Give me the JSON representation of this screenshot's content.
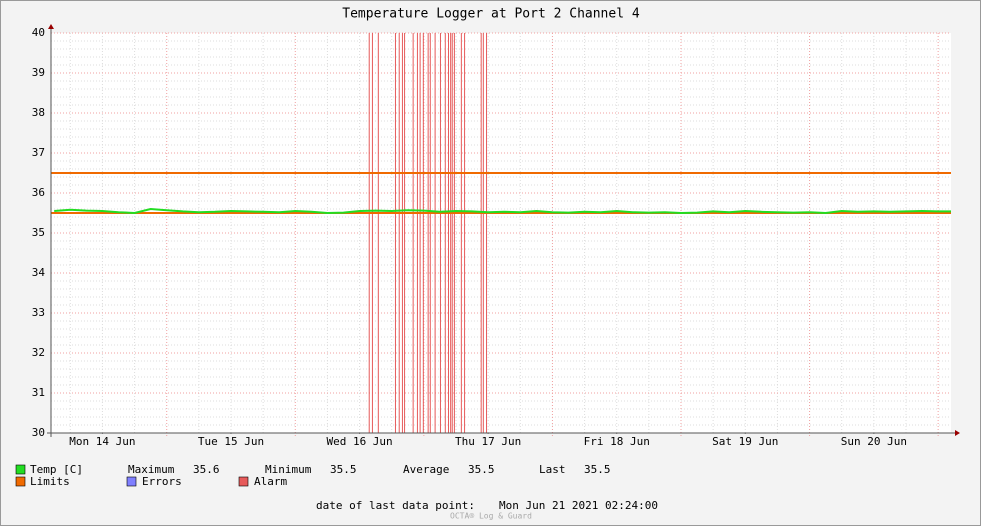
{
  "chart_data": {
    "type": "line",
    "title": "Temperature Logger at Port 2 Channel 4",
    "x": [
      3,
      6,
      9,
      12,
      15,
      18,
      21,
      24,
      27,
      30,
      33,
      36,
      39,
      42,
      45,
      48,
      51,
      54,
      57,
      60,
      63,
      66,
      69,
      72,
      75,
      78,
      81,
      84,
      87,
      90,
      93,
      96,
      99,
      102,
      105,
      108,
      111,
      114,
      117,
      120,
      123,
      126,
      129,
      132,
      135,
      138,
      141,
      144,
      147,
      150,
      153,
      156,
      159,
      162,
      165,
      168,
      170.4
    ],
    "series": [
      {
        "name": "Temp [C]",
        "color": "#22dd22",
        "values": [
          35.55,
          35.58,
          35.56,
          35.55,
          35.52,
          35.5,
          35.6,
          35.57,
          35.54,
          35.52,
          35.53,
          35.55,
          35.54,
          35.53,
          35.52,
          35.55,
          35.53,
          35.5,
          35.51,
          35.55,
          35.56,
          35.55,
          35.57,
          35.56,
          35.53,
          35.55,
          35.54,
          35.52,
          35.53,
          35.52,
          35.55,
          35.52,
          35.51,
          35.53,
          35.52,
          35.55,
          35.52,
          35.51,
          35.52,
          35.5,
          35.51,
          35.54,
          35.52,
          35.55,
          35.53,
          35.52,
          35.51,
          35.52,
          35.5,
          35.55,
          35.53,
          35.54,
          35.53,
          35.54,
          35.55,
          35.54,
          35.54
        ]
      }
    ],
    "limits": {
      "name": "Limits",
      "color": "#f06a00",
      "values": [
        35.5,
        36.5
      ]
    },
    "errors": {
      "name": "Errors",
      "color": "#7f7fff"
    },
    "alarm": {
      "name": "Alarm",
      "color": "#e65a5a",
      "x": [
        61.8,
        62.4,
        63.5,
        66.7,
        67.4,
        68.0,
        68.4,
        70.0,
        70.8,
        71.3,
        71.9,
        72.8,
        73.2,
        74.1,
        75.1,
        76.0,
        76.6,
        77.0,
        77.3,
        77.7,
        79.0,
        79.6,
        82.7,
        83.1,
        83.7
      ]
    },
    "xlim": [
      2.4,
      170.4
    ],
    "xticks": [
      {
        "value": 12,
        "label": "Mon 14 Jun"
      },
      {
        "value": 36,
        "label": "Tue 15 Jun"
      },
      {
        "value": 60,
        "label": "Wed 16 Jun"
      },
      {
        "value": 84,
        "label": "Thu 17 Jun"
      },
      {
        "value": 108,
        "label": "Fri 18 Jun"
      },
      {
        "value": 132,
        "label": "Sat 19 Jun"
      },
      {
        "value": 156,
        "label": "Sun 20 Jun"
      }
    ],
    "xgrid": [
      24,
      48,
      72,
      96,
      120,
      144,
      168
    ],
    "xminor": [
      6,
      12,
      18,
      30,
      36,
      42,
      54,
      60,
      66,
      78,
      84,
      90,
      102,
      108,
      114,
      126,
      132,
      138,
      150,
      156,
      162
    ],
    "ylim": [
      30,
      40
    ],
    "yticks": [
      30,
      31,
      32,
      33,
      34,
      35,
      36,
      37,
      38,
      39,
      40
    ],
    "yminor": [
      30.2,
      30.4,
      30.6,
      30.8,
      31.2,
      31.4,
      31.6,
      31.8,
      32.2,
      32.4,
      32.6,
      32.8,
      33.2,
      33.4,
      33.6,
      33.8,
      34.2,
      34.4,
      34.6,
      34.8,
      35.2,
      35.4,
      35.6,
      35.8,
      36.2,
      36.4,
      36.6,
      36.8,
      37.2,
      37.4,
      37.6,
      37.8,
      38.2,
      38.4,
      38.6,
      38.8,
      39.2,
      39.4,
      39.6,
      39.8
    ],
    "grid": true,
    "stats": [
      {
        "label": "Maximum",
        "value": 35.6
      },
      {
        "label": "Minimum",
        "value": 35.5
      },
      {
        "label": "Average",
        "value": 35.5
      },
      {
        "label": "Last",
        "value": 35.5
      }
    ],
    "last_point_label": "date of last data point:",
    "last_point": "Mon Jun 21 2021 02:24:00",
    "footer": "OCTA® Log & Guard"
  }
}
